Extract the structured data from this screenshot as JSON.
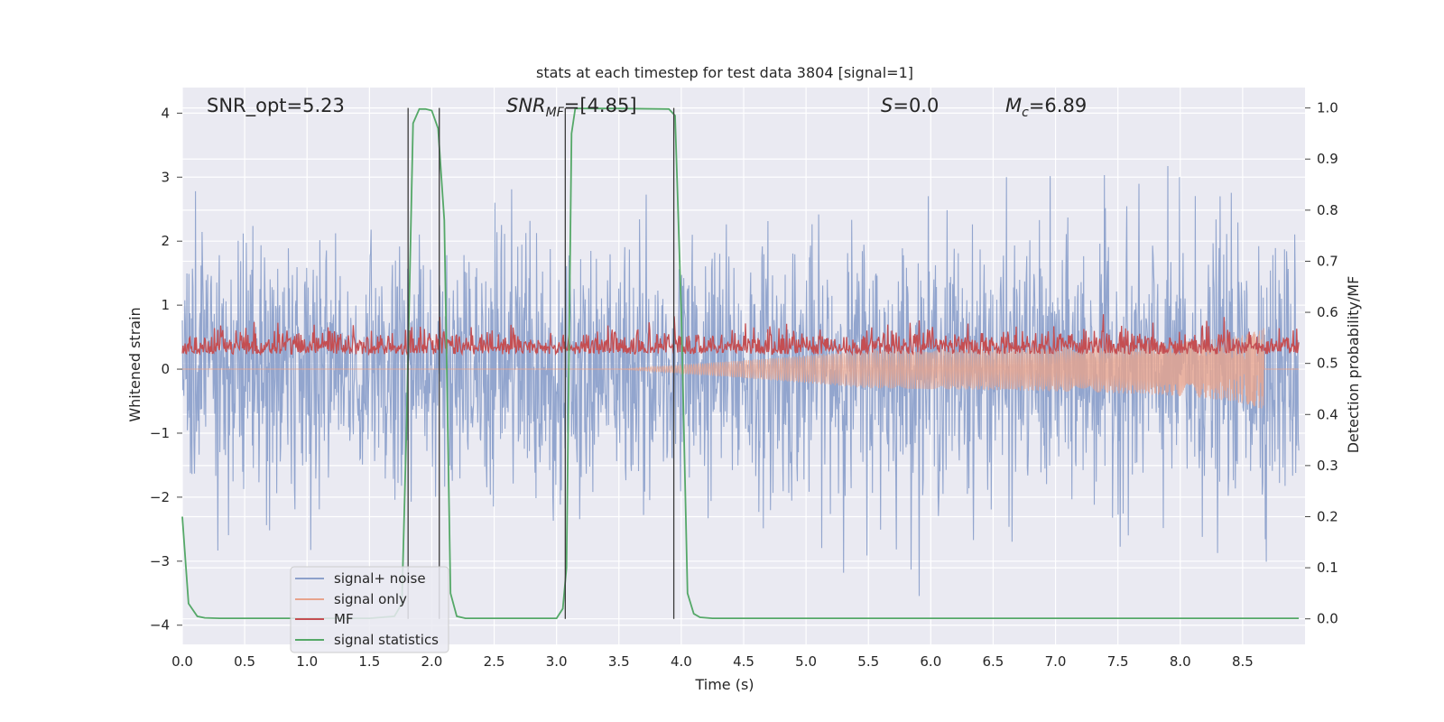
{
  "chart_data": {
    "type": "line",
    "title": "stats at each timestep for test data 3804 [signal=1]",
    "xlabel": "Time (s)",
    "ylabel": "Whitened strain",
    "y2label": "Detection probability/MF",
    "xlim": [
      0.0,
      9.0
    ],
    "ylim": [
      -4.3,
      4.4
    ],
    "y2lim": [
      -0.05,
      1.04
    ],
    "xticks": [
      "0.0",
      "0.5",
      "1.0",
      "1.5",
      "2.0",
      "2.5",
      "3.0",
      "3.5",
      "4.0",
      "4.5",
      "5.0",
      "5.5",
      "6.0",
      "6.5",
      "7.0",
      "7.5",
      "8.0",
      "8.5"
    ],
    "yticks": [
      "-4",
      "-3",
      "-2",
      "-1",
      "0",
      "1",
      "2",
      "3",
      "4"
    ],
    "y2ticks": [
      "0.0",
      "0.1",
      "0.2",
      "0.3",
      "0.4",
      "0.5",
      "0.6",
      "0.7",
      "0.8",
      "0.9",
      "1.0"
    ],
    "grid": true,
    "legend_position": "lower-left",
    "annotations": {
      "snr_opt": "SNR_opt=5.23",
      "snr_mf_main": "SNR",
      "snr_mf_sub": "MF",
      "snr_mf_value": "=[4.85]",
      "s_main": "S",
      "s_value": "=0.0",
      "mc_main": "M",
      "mc_sub": "c",
      "mc_value": "=6.89"
    },
    "series": [
      {
        "name": "signal+ noise",
        "axis": "left",
        "color": "#8da1cb",
        "description_range": [
          -3.8,
          3.9
        ],
        "noise_sigma": 1.0
      },
      {
        "name": "signal only",
        "axis": "left",
        "color": "#e7a48d",
        "chirp_peak_time": 8.67,
        "chirp_peak_amplitude": 0.65
      },
      {
        "name": "MF",
        "axis": "right",
        "color": "#c44e52",
        "baseline": 0.53,
        "range": [
          0.5,
          0.6
        ]
      },
      {
        "name": "signal statistics",
        "axis": "right",
        "color": "#55a868",
        "x": [
          0.0,
          0.05,
          0.12,
          0.18,
          0.3,
          0.6,
          1.0,
          1.5,
          1.7,
          1.76,
          1.8,
          1.85,
          1.9,
          1.95,
          2.0,
          2.05,
          2.1,
          2.15,
          2.2,
          2.27,
          2.35,
          2.5,
          3.0,
          3.05,
          3.08,
          3.12,
          3.15,
          3.5,
          3.9,
          3.95,
          4.0,
          4.05,
          4.1,
          4.15,
          4.25,
          4.5,
          5.0,
          6.0,
          7.0,
          8.0,
          8.95
        ],
        "values": [
          0.2,
          0.03,
          0.005,
          0.002,
          0.001,
          0.001,
          0.001,
          0.001,
          0.005,
          0.03,
          0.4,
          0.97,
          0.998,
          0.998,
          0.995,
          0.96,
          0.78,
          0.05,
          0.005,
          0.001,
          0.001,
          0.001,
          0.001,
          0.02,
          0.1,
          0.95,
          0.999,
          0.999,
          0.998,
          0.985,
          0.6,
          0.05,
          0.01,
          0.003,
          0.001,
          0.001,
          0.001,
          0.001,
          0.001,
          0.001,
          0.001
        ]
      }
    ],
    "vlines": [
      1.81,
      2.06,
      3.07,
      3.94
    ]
  },
  "legend": {
    "items": [
      {
        "label": "signal+ noise",
        "color": "#8da1cb"
      },
      {
        "label": "signal only",
        "color": "#e7a48d"
      },
      {
        "label": "MF",
        "color": "#c44e52"
      },
      {
        "label": "signal statistics",
        "color": "#55a868"
      }
    ]
  },
  "style": {
    "plot_background": "#eaeaf2",
    "grid_color": "#ffffff",
    "vline_color": "#3a3a3a"
  }
}
